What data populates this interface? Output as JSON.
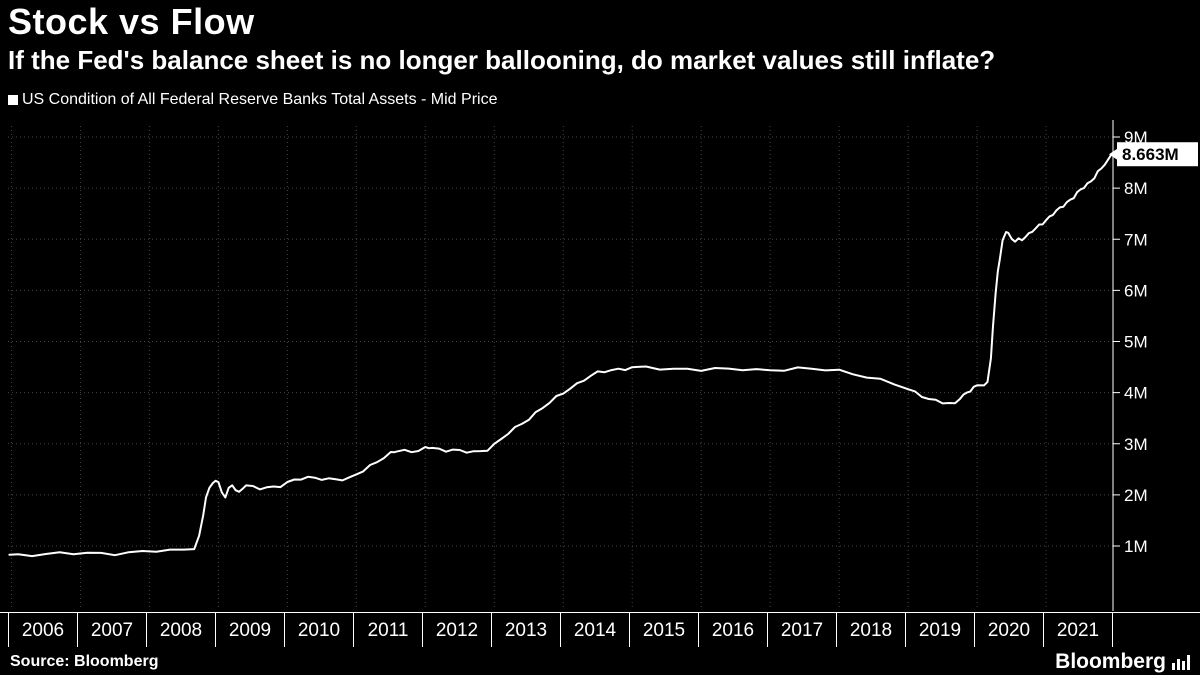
{
  "header": {
    "title": "Stock vs Flow",
    "subtitle": "If the Fed's balance sheet is no longer ballooning, do market values still inflate?"
  },
  "legend": {
    "label": "US Condition of All Federal Reserve Banks Total Assets - Mid Price"
  },
  "footer": {
    "source": "Source:  Bloomberg",
    "brand": "Bloomberg"
  },
  "colors": {
    "background": "#000000",
    "line": "#ffffff",
    "grid": "#454545",
    "axis": "#ffffff",
    "text": "#ffffff",
    "last_value_bg": "#ffffff",
    "last_value_text": "#000000"
  },
  "chart_data": {
    "type": "line",
    "title": "Stock vs Flow",
    "subtitle": "If the Fed's balance sheet is no longer ballooning, do market values still inflate?",
    "series_name": "US Condition of All Federal Reserve Banks Total Assets - Mid Price",
    "unit": "M (millions of USD)",
    "grid": "dotted",
    "legend_position": "top-left",
    "last_value": 8.663,
    "last_value_label": "8.663M",
    "x_range": [
      2005.95,
      2021.97
    ],
    "ylim": [
      0,
      9.5
    ],
    "x_tick_labels": [
      "2006",
      "2007",
      "2008",
      "2009",
      "2010",
      "2011",
      "2012",
      "2013",
      "2014",
      "2015",
      "2016",
      "2017",
      "2018",
      "2019",
      "2020",
      "2021"
    ],
    "y_ticks": [
      1,
      2,
      3,
      4,
      5,
      6,
      7,
      8,
      9
    ],
    "y_tick_labels": [
      "1M",
      "2M",
      "3M",
      "4M",
      "5M",
      "6M",
      "7M",
      "8M",
      "9M"
    ],
    "points": [
      [
        2005.97,
        0.83
      ],
      [
        2006.1,
        0.83
      ],
      [
        2006.3,
        0.84
      ],
      [
        2006.5,
        0.84
      ],
      [
        2006.7,
        0.85
      ],
      [
        2006.9,
        0.85
      ],
      [
        2007.1,
        0.85
      ],
      [
        2007.3,
        0.86
      ],
      [
        2007.5,
        0.86
      ],
      [
        2007.7,
        0.87
      ],
      [
        2007.9,
        0.89
      ],
      [
        2008.1,
        0.9
      ],
      [
        2008.3,
        0.9
      ],
      [
        2008.5,
        0.93
      ],
      [
        2008.65,
        0.94
      ],
      [
        2008.72,
        1.2
      ],
      [
        2008.78,
        1.6
      ],
      [
        2008.82,
        1.95
      ],
      [
        2008.87,
        2.1
      ],
      [
        2008.92,
        2.24
      ],
      [
        2008.96,
        2.3
      ],
      [
        2009.0,
        2.25
      ],
      [
        2009.05,
        2.05
      ],
      [
        2009.1,
        1.95
      ],
      [
        2009.15,
        2.1
      ],
      [
        2009.2,
        2.2
      ],
      [
        2009.25,
        2.1
      ],
      [
        2009.3,
        2.05
      ],
      [
        2009.35,
        2.15
      ],
      [
        2009.4,
        2.18
      ],
      [
        2009.5,
        2.14
      ],
      [
        2009.6,
        2.12
      ],
      [
        2009.7,
        2.14
      ],
      [
        2009.8,
        2.16
      ],
      [
        2009.9,
        2.19
      ],
      [
        2010.0,
        2.24
      ],
      [
        2010.1,
        2.28
      ],
      [
        2010.2,
        2.31
      ],
      [
        2010.3,
        2.33
      ],
      [
        2010.4,
        2.34
      ],
      [
        2010.5,
        2.33
      ],
      [
        2010.6,
        2.31
      ],
      [
        2010.7,
        2.3
      ],
      [
        2010.8,
        2.29
      ],
      [
        2010.9,
        2.31
      ],
      [
        2011.0,
        2.41
      ],
      [
        2011.1,
        2.49
      ],
      [
        2011.2,
        2.57
      ],
      [
        2011.3,
        2.65
      ],
      [
        2011.4,
        2.72
      ],
      [
        2011.5,
        2.8
      ],
      [
        2011.55,
        2.85
      ],
      [
        2011.6,
        2.87
      ],
      [
        2011.7,
        2.87
      ],
      [
        2011.8,
        2.86
      ],
      [
        2011.9,
        2.85
      ],
      [
        2012.0,
        2.9
      ],
      [
        2012.05,
        2.93
      ],
      [
        2012.1,
        2.92
      ],
      [
        2012.2,
        2.9
      ],
      [
        2012.3,
        2.88
      ],
      [
        2012.4,
        2.87
      ],
      [
        2012.5,
        2.85
      ],
      [
        2012.6,
        2.84
      ],
      [
        2012.7,
        2.84
      ],
      [
        2012.8,
        2.86
      ],
      [
        2012.9,
        2.9
      ],
      [
        2013.0,
        2.98
      ],
      [
        2013.1,
        3.08
      ],
      [
        2013.2,
        3.2
      ],
      [
        2013.3,
        3.3
      ],
      [
        2013.4,
        3.4
      ],
      [
        2013.5,
        3.5
      ],
      [
        2013.6,
        3.6
      ],
      [
        2013.7,
        3.7
      ],
      [
        2013.8,
        3.8
      ],
      [
        2013.9,
        3.9
      ],
      [
        2014.0,
        4.0
      ],
      [
        2014.1,
        4.1
      ],
      [
        2014.2,
        4.17
      ],
      [
        2014.3,
        4.25
      ],
      [
        2014.4,
        4.32
      ],
      [
        2014.5,
        4.38
      ],
      [
        2014.6,
        4.42
      ],
      [
        2014.7,
        4.45
      ],
      [
        2014.8,
        4.46
      ],
      [
        2014.9,
        4.47
      ],
      [
        2015.0,
        4.48
      ],
      [
        2015.2,
        4.48
      ],
      [
        2015.4,
        4.47
      ],
      [
        2015.6,
        4.46
      ],
      [
        2015.8,
        4.47
      ],
      [
        2016.0,
        4.46
      ],
      [
        2016.2,
        4.46
      ],
      [
        2016.4,
        4.45
      ],
      [
        2016.6,
        4.45
      ],
      [
        2016.8,
        4.44
      ],
      [
        2017.0,
        4.45
      ],
      [
        2017.2,
        4.46
      ],
      [
        2017.4,
        4.47
      ],
      [
        2017.6,
        4.46
      ],
      [
        2017.8,
        4.44
      ],
      [
        2018.0,
        4.42
      ],
      [
        2018.2,
        4.38
      ],
      [
        2018.4,
        4.32
      ],
      [
        2018.6,
        4.25
      ],
      [
        2018.8,
        4.17
      ],
      [
        2019.0,
        4.06
      ],
      [
        2019.1,
        3.99
      ],
      [
        2019.2,
        3.94
      ],
      [
        2019.3,
        3.89
      ],
      [
        2019.4,
        3.85
      ],
      [
        2019.5,
        3.81
      ],
      [
        2019.6,
        3.78
      ],
      [
        2019.68,
        3.76
      ],
      [
        2019.75,
        3.9
      ],
      [
        2019.8,
        3.96
      ],
      [
        2019.85,
        4.0
      ],
      [
        2019.9,
        4.05
      ],
      [
        2019.95,
        4.09
      ],
      [
        2020.0,
        4.12
      ],
      [
        2020.1,
        4.16
      ],
      [
        2020.15,
        4.21
      ],
      [
        2020.2,
        4.67
      ],
      [
        2020.23,
        5.3
      ],
      [
        2020.27,
        5.96
      ],
      [
        2020.3,
        6.37
      ],
      [
        2020.33,
        6.62
      ],
      [
        2020.37,
        6.98
      ],
      [
        2020.4,
        7.1
      ],
      [
        2020.42,
        7.17
      ],
      [
        2020.45,
        7.1
      ],
      [
        2020.5,
        7.01
      ],
      [
        2020.55,
        6.95
      ],
      [
        2020.6,
        6.99
      ],
      [
        2020.65,
        7.01
      ],
      [
        2020.7,
        7.06
      ],
      [
        2020.75,
        7.1
      ],
      [
        2020.8,
        7.16
      ],
      [
        2020.85,
        7.2
      ],
      [
        2020.9,
        7.26
      ],
      [
        2020.95,
        7.32
      ],
      [
        2021.0,
        7.38
      ],
      [
        2021.05,
        7.44
      ],
      [
        2021.1,
        7.5
      ],
      [
        2021.15,
        7.54
      ],
      [
        2021.2,
        7.6
      ],
      [
        2021.25,
        7.66
      ],
      [
        2021.3,
        7.72
      ],
      [
        2021.35,
        7.78
      ],
      [
        2021.4,
        7.83
      ],
      [
        2021.45,
        7.89
      ],
      [
        2021.5,
        7.96
      ],
      [
        2021.55,
        8.02
      ],
      [
        2021.6,
        8.08
      ],
      [
        2021.65,
        8.15
      ],
      [
        2021.7,
        8.22
      ],
      [
        2021.75,
        8.3
      ],
      [
        2021.8,
        8.38
      ],
      [
        2021.85,
        8.46
      ],
      [
        2021.9,
        8.54
      ],
      [
        2021.95,
        8.663
      ]
    ]
  }
}
